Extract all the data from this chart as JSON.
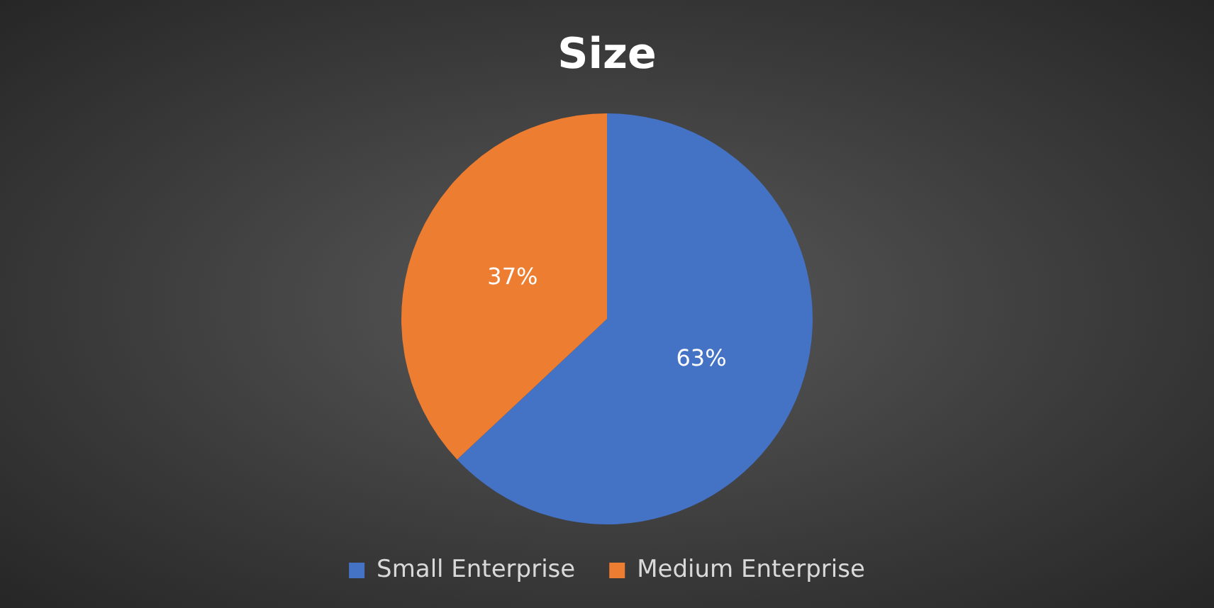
{
  "chart_data": {
    "type": "pie",
    "title": "Size",
    "categories": [
      "Small Enterprise",
      "Medium Enterprise"
    ],
    "values": [
      63,
      37
    ],
    "value_labels": [
      "63%",
      "37%"
    ],
    "colors": [
      "#4472c4",
      "#ed7d31"
    ],
    "legend": "bottom"
  }
}
